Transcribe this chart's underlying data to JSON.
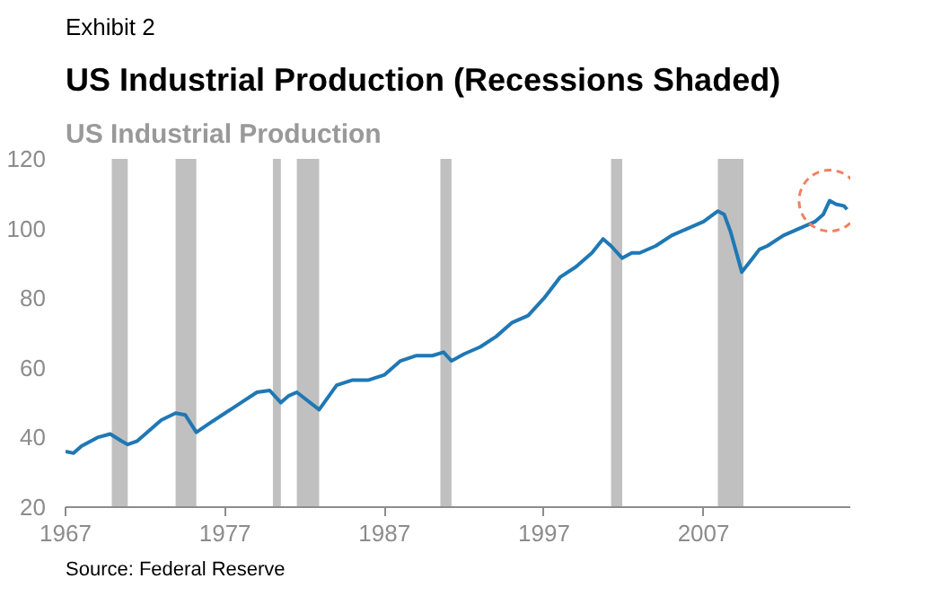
{
  "chart_data": {
    "type": "line",
    "title": "US Industrial Production (Recessions Shaded)",
    "subtitle": "US Industrial Production",
    "annotations": [
      "Exhibit 2",
      "Source: Federal Reserve"
    ],
    "x": [
      1967,
      1967.5,
      1968,
      1969,
      1969.8,
      1970.5,
      1970.9,
      1971.5,
      1972,
      1973,
      1973.9,
      1974.5,
      1975.2,
      1976,
      1977,
      1978,
      1979,
      1979.8,
      1980.5,
      1981,
      1981.5,
      1982.9,
      1984,
      1985,
      1986,
      1987,
      1988,
      1989,
      1990,
      1990.7,
      1991.2,
      1992,
      1993,
      1994,
      1995,
      1996,
      1997,
      1998,
      1999,
      2000,
      2000.7,
      2001.2,
      2001.9,
      2002.5,
      2003,
      2004,
      2005,
      2006,
      2007,
      2007.9,
      2008.3,
      2008.7,
      2009.4,
      2010,
      2010.5,
      2011,
      2012,
      2013,
      2014,
      2014.5,
      2014.9,
      2015.3,
      2015.8,
      2016
    ],
    "series": [
      {
        "color": "#1f78b4",
        "values": [
          36,
          35.5,
          37.5,
          40,
          41,
          39,
          38,
          39,
          41,
          45,
          47,
          46.5,
          41.5,
          44,
          47,
          50,
          53,
          53.5,
          50,
          52,
          53,
          48,
          55,
          56.5,
          56.5,
          58,
          62,
          63.5,
          63.5,
          64.5,
          62,
          64,
          66,
          69,
          73,
          75,
          80,
          86,
          89,
          93,
          97,
          95,
          91.5,
          93,
          93,
          95,
          98,
          100,
          102,
          105,
          104,
          99,
          87.5,
          91,
          94,
          95,
          98,
          100,
          102,
          104,
          108,
          107,
          106.5,
          105.5
        ]
      }
    ],
    "bands": [
      {
        "axis": "x",
        "from": 1969.9,
        "to": 1970.9,
        "color": "#c0c0c0"
      },
      {
        "axis": "x",
        "from": 1973.9,
        "to": 1975.2,
        "color": "#c0c0c0"
      },
      {
        "axis": "x",
        "from": 1980.0,
        "to": 1980.5,
        "color": "#c0c0c0"
      },
      {
        "axis": "x",
        "from": 1981.5,
        "to": 1982.9,
        "color": "#c0c0c0"
      },
      {
        "axis": "x",
        "from": 1990.5,
        "to": 1991.2,
        "color": "#c0c0c0"
      },
      {
        "axis": "x",
        "from": 2001.2,
        "to": 2001.9,
        "color": "#c0c0c0"
      },
      {
        "axis": "x",
        "from": 2007.9,
        "to": 2009.5,
        "color": "#c0c0c0"
      }
    ],
    "xlim": [
      1967,
      2016.2
    ],
    "xticks": [
      1967,
      1977,
      1987,
      1997,
      2007
    ],
    "ylim": [
      20,
      120
    ],
    "yticks": [
      20,
      40,
      60,
      80,
      100,
      120
    ],
    "grid": false
  }
}
